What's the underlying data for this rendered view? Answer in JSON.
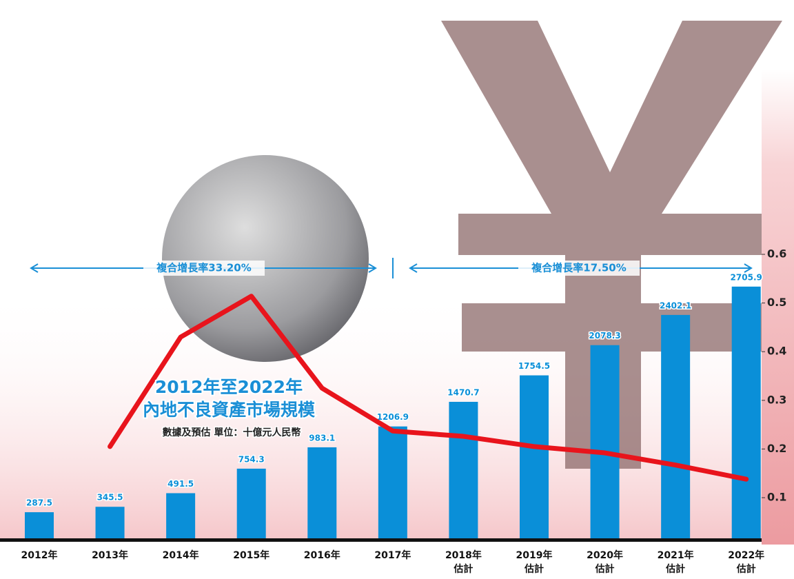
{
  "chart_data": {
    "type": "bar",
    "title": "2012年至2022年",
    "subtitle": "內地不良資產市場規模",
    "note": "數據及預估 單位：十億元人民幣",
    "annotations": [
      "複合增長率33.20%",
      "複合增長率17.50%"
    ],
    "categories": [
      "2012年",
      "2013年",
      "2014年",
      "2015年",
      "2016年",
      "2017年",
      "2018年\n估計",
      "2019年\n估計",
      "2020年\n估計",
      "2021年\n估計",
      "2022年\n估計"
    ],
    "series": [
      {
        "type": "bar",
        "color": "#0a8fd8",
        "values": [
          287.5,
          345.5,
          491.5,
          754.3,
          983.1,
          1206.9,
          1470.7,
          1754.5,
          2078.3,
          2402.1,
          2705.9
        ]
      },
      {
        "type": "line",
        "color": "#e8141c",
        "axis": "y2",
        "values": [
          null,
          0.205,
          0.43,
          0.514,
          0.325,
          0.237,
          0.226,
          0.205,
          0.192,
          0.167,
          0.138
        ]
      }
    ],
    "ylim": [
      0,
      3000
    ],
    "y2lim": [
      0,
      0.7
    ],
    "y2ticks": [
      0.1,
      0.2,
      0.3,
      0.4,
      0.5,
      0.6
    ]
  }
}
